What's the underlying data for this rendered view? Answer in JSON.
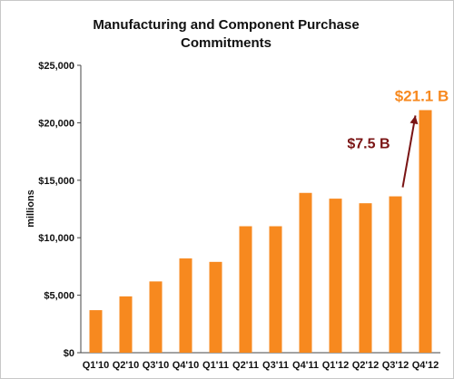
{
  "chart_data": {
    "type": "bar",
    "title_lines": [
      "Manufacturing and Component Purchase",
      "Commitments"
    ],
    "ylabel": "millions",
    "xlabel": "",
    "categories": [
      "Q1'10",
      "Q2'10",
      "Q3'10",
      "Q4'10",
      "Q1'11",
      "Q2'11",
      "Q3'11",
      "Q4'11",
      "Q1'12",
      "Q2'12",
      "Q3'12",
      "Q4'12"
    ],
    "values": [
      3700,
      4900,
      6200,
      8200,
      7900,
      11000,
      11000,
      13900,
      13400,
      13000,
      13600,
      21100
    ],
    "ylim": [
      0,
      25000
    ],
    "yticks": [
      0,
      5000,
      10000,
      15000,
      20000,
      25000
    ],
    "ytick_labels": [
      "$0",
      "$5,000",
      "$10,000",
      "$15,000",
      "$20,000",
      "$25,000"
    ],
    "grid": false,
    "legend": "none",
    "bar_color": "#f7891f",
    "annotations": {
      "last_bar_label": "$21.1 B",
      "last_bar_label_color": "#f7891f",
      "increase_label": "$7.5 B",
      "increase_label_color": "#7a1414",
      "increase_from_index": 10,
      "increase_to_index": 11
    }
  }
}
